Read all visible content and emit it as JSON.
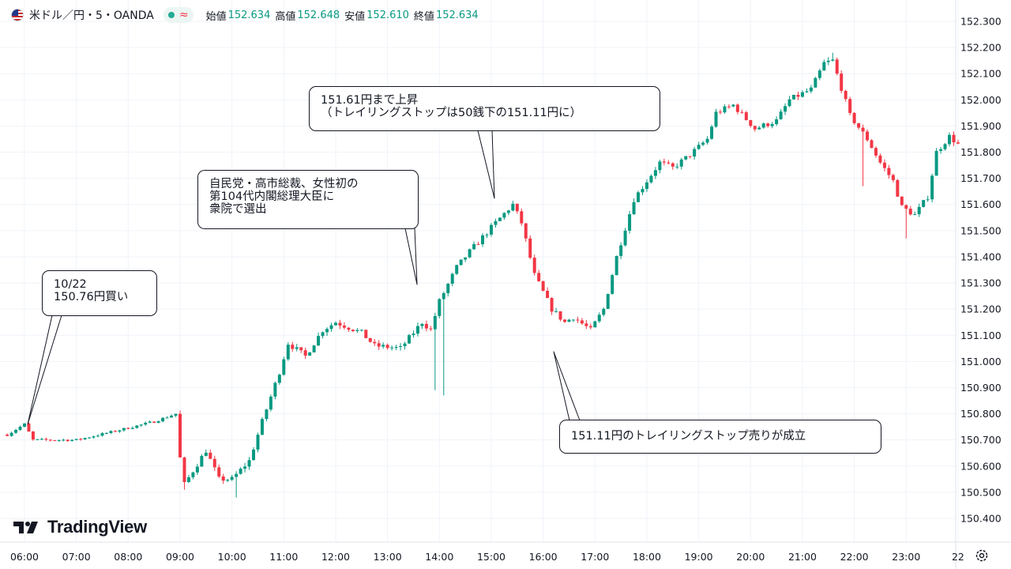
{
  "header": {
    "symbol": "米ドル／円・5・OANDA",
    "ohlc": [
      {
        "label": "始値",
        "value": "152.634"
      },
      {
        "label": "高値",
        "value": "152.648"
      },
      {
        "label": "安値",
        "value": "152.610"
      },
      {
        "label": "終値",
        "value": "152.634"
      }
    ],
    "wave_glyph": "≈"
  },
  "branding": {
    "logo_text": "TradingView"
  },
  "callouts": [
    {
      "text": "10/22\n150.76円買い"
    },
    {
      "text": "自民党・高市総裁、女性初の\n第104代内閣総理大臣に\n衆院で選出"
    },
    {
      "text": "151.61円まで上昇\n（トレイリングストップは50銭下の151.11円に）"
    },
    {
      "text": "151.11円のトレイリングストップ売りが成立"
    }
  ],
  "colors": {
    "up": "#089981",
    "down": "#f23645",
    "grid": "#f0f3fa",
    "text": "#131722"
  },
  "chart_data": {
    "type": "candlestick",
    "title": "米ドル／円・5・OANDA",
    "interval_minutes": 5,
    "x_tick_labels": [
      "06:00",
      "07:00",
      "08:00",
      "09:00",
      "10:00",
      "11:00",
      "12:00",
      "13:00",
      "14:00",
      "15:00",
      "16:00",
      "17:00",
      "18:00",
      "19:00",
      "20:00",
      "21:00",
      "22:00",
      "23:00",
      "22"
    ],
    "y_tick_labels": [
      "150.400",
      "150.500",
      "150.600",
      "150.700",
      "150.800",
      "150.900",
      "151.000",
      "151.100",
      "151.200",
      "151.300",
      "151.400",
      "151.500",
      "151.600",
      "151.700",
      "151.800",
      "151.900",
      "152.000",
      "152.100",
      "152.200",
      "152.300"
    ],
    "ylim": [
      150.4,
      152.3
    ],
    "anchors": [
      {
        "time": "05:40",
        "close": 150.72
      },
      {
        "time": "06:00",
        "close": 150.76
      },
      {
        "time": "06:10",
        "close": 150.7
      },
      {
        "time": "07:00",
        "close": 150.7
      },
      {
        "time": "07:40",
        "close": 150.73
      },
      {
        "time": "08:30",
        "close": 150.77
      },
      {
        "time": "08:55",
        "close": 150.8
      },
      {
        "time": "09:00",
        "close": 150.63
      },
      {
        "time": "09:05",
        "close": 150.53
      },
      {
        "time": "09:30",
        "close": 150.66
      },
      {
        "time": "09:45",
        "close": 150.55
      },
      {
        "time": "10:00",
        "close": 150.55
      },
      {
        "time": "10:20",
        "close": 150.62
      },
      {
        "time": "10:35",
        "close": 150.77
      },
      {
        "time": "10:55",
        "close": 150.96
      },
      {
        "time": "11:05",
        "close": 151.07
      },
      {
        "time": "11:25",
        "close": 151.02
      },
      {
        "time": "11:45",
        "close": 151.12
      },
      {
        "time": "12:00",
        "close": 151.15
      },
      {
        "time": "12:30",
        "close": 151.11
      },
      {
        "time": "12:45",
        "close": 151.06
      },
      {
        "time": "13:15",
        "close": 151.05
      },
      {
        "time": "13:40",
        "close": 151.15
      },
      {
        "time": "13:50",
        "close": 151.12
      },
      {
        "time": "14:00",
        "close": 151.23
      },
      {
        "time": "14:20",
        "close": 151.36
      },
      {
        "time": "14:35",
        "close": 151.42
      },
      {
        "time": "15:05",
        "close": 151.53
      },
      {
        "time": "15:25",
        "close": 151.6
      },
      {
        "time": "15:35",
        "close": 151.53
      },
      {
        "time": "15:50",
        "close": 151.33
      },
      {
        "time": "16:10",
        "close": 151.2
      },
      {
        "time": "16:25",
        "close": 151.15
      },
      {
        "time": "16:35",
        "close": 151.17
      },
      {
        "time": "16:55",
        "close": 151.12
      },
      {
        "time": "17:10",
        "close": 151.2
      },
      {
        "time": "17:25",
        "close": 151.4
      },
      {
        "time": "17:45",
        "close": 151.62
      },
      {
        "time": "18:15",
        "close": 151.76
      },
      {
        "time": "18:30",
        "close": 151.74
      },
      {
        "time": "18:50",
        "close": 151.79
      },
      {
        "time": "19:10",
        "close": 151.85
      },
      {
        "time": "19:20",
        "close": 151.95
      },
      {
        "time": "19:40",
        "close": 151.98
      },
      {
        "time": "20:05",
        "close": 151.89
      },
      {
        "time": "20:30",
        "close": 151.92
      },
      {
        "time": "20:45",
        "close": 152.0
      },
      {
        "time": "21:10",
        "close": 152.04
      },
      {
        "time": "21:25",
        "close": 152.14
      },
      {
        "time": "21:35",
        "close": 152.15
      },
      {
        "time": "21:55",
        "close": 151.94
      },
      {
        "time": "22:15",
        "close": 151.85
      },
      {
        "time": "22:30",
        "close": 151.76
      },
      {
        "time": "22:45",
        "close": 151.69
      },
      {
        "time": "22:55",
        "close": 151.59
      },
      {
        "time": "23:10",
        "close": 151.56
      },
      {
        "time": "23:25",
        "close": 151.63
      },
      {
        "time": "23:35",
        "close": 151.8
      },
      {
        "time": "23:50",
        "close": 151.86
      },
      {
        "time": "24:00",
        "close": 151.83
      }
    ],
    "wick_extremes": [
      {
        "time": "09:05",
        "low": 150.51
      },
      {
        "time": "10:05",
        "low": 150.48
      },
      {
        "time": "13:55",
        "low": 150.89
      },
      {
        "time": "14:05",
        "low": 150.87
      },
      {
        "time": "14:05",
        "high": 151.22
      },
      {
        "time": "21:35",
        "high": 152.18
      },
      {
        "time": "22:10",
        "low": 151.67
      },
      {
        "time": "23:00",
        "low": 151.47
      }
    ]
  }
}
